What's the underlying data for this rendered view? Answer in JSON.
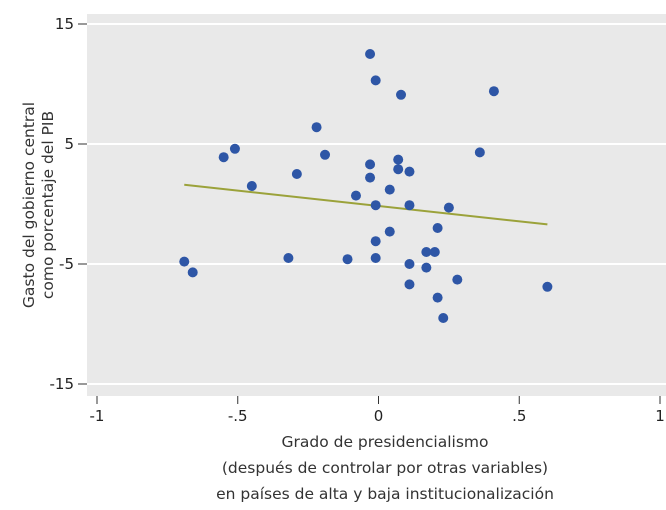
{
  "chart_data": {
    "type": "scatter",
    "xlabel": [
      "Grado de presidencialismo",
      "(después de controlar por otras variables)",
      "en países de alta y baja institucionalización"
    ],
    "ylabel": [
      "Gasto del gobierno central",
      "como porcentaje del PIB"
    ],
    "xlim": [
      -1,
      1
    ],
    "ylim": [
      -15,
      15
    ],
    "xticks": [
      -1,
      -0.5,
      0,
      0.5,
      1
    ],
    "xtick_labels": [
      "-1",
      "-.5",
      "0",
      ".5",
      "1"
    ],
    "yticks": [
      15,
      5,
      -5,
      -15
    ],
    "ytick_labels": [
      "15",
      "5",
      "-5",
      "-15"
    ],
    "grid": true,
    "colors": {
      "background": "#e9e9e9",
      "grid": "#ffffff",
      "points": "#2e56a6",
      "fit_line": "#9ba23a"
    },
    "points": [
      {
        "x": -0.69,
        "y": -4.8
      },
      {
        "x": -0.66,
        "y": -5.7
      },
      {
        "x": -0.55,
        "y": 3.9
      },
      {
        "x": -0.51,
        "y": 4.6
      },
      {
        "x": -0.45,
        "y": 1.5
      },
      {
        "x": -0.32,
        "y": -4.5
      },
      {
        "x": -0.29,
        "y": 2.5
      },
      {
        "x": -0.22,
        "y": 6.4
      },
      {
        "x": -0.19,
        "y": 4.1
      },
      {
        "x": -0.11,
        "y": -4.6
      },
      {
        "x": -0.08,
        "y": 0.7
      },
      {
        "x": -0.03,
        "y": 2.2
      },
      {
        "x": -0.03,
        "y": 3.3
      },
      {
        "x": -0.03,
        "y": 12.5
      },
      {
        "x": -0.01,
        "y": -0.1
      },
      {
        "x": -0.01,
        "y": -3.1
      },
      {
        "x": -0.01,
        "y": -4.5
      },
      {
        "x": -0.01,
        "y": 10.3
      },
      {
        "x": 0.04,
        "y": 1.2
      },
      {
        "x": 0.04,
        "y": -2.3
      },
      {
        "x": 0.07,
        "y": 2.9
      },
      {
        "x": 0.07,
        "y": 3.7
      },
      {
        "x": 0.08,
        "y": 9.1
      },
      {
        "x": 0.11,
        "y": 2.7
      },
      {
        "x": 0.11,
        "y": -0.1
      },
      {
        "x": 0.11,
        "y": -5.0
      },
      {
        "x": 0.11,
        "y": -6.7
      },
      {
        "x": 0.17,
        "y": -4.0
      },
      {
        "x": 0.17,
        "y": -5.3
      },
      {
        "x": 0.2,
        "y": -4.0
      },
      {
        "x": 0.21,
        "y": -2.0
      },
      {
        "x": 0.21,
        "y": -7.8
      },
      {
        "x": 0.23,
        "y": -9.5
      },
      {
        "x": 0.25,
        "y": -0.3
      },
      {
        "x": 0.28,
        "y": -6.3
      },
      {
        "x": 0.36,
        "y": 4.3
      },
      {
        "x": 0.41,
        "y": 9.4
      },
      {
        "x": 0.6,
        "y": -6.9
      }
    ],
    "fit_line": {
      "x": [
        -0.69,
        0.6
      ],
      "y": [
        1.6,
        -1.7
      ]
    }
  }
}
